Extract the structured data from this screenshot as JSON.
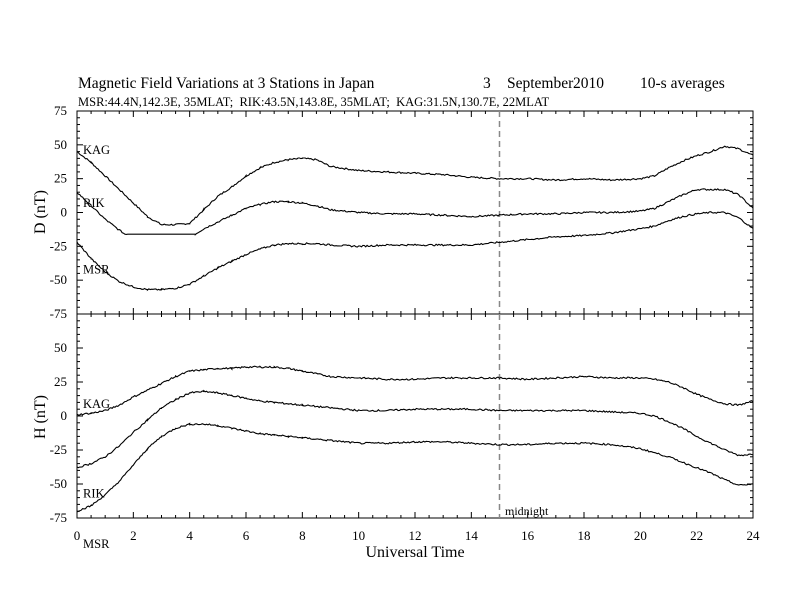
{
  "header": {
    "title": "Magnetic Field Variations at 3 Stations in Japan",
    "day": "3",
    "month": "September",
    "year": "2010",
    "averaging": "10-s averages",
    "stations_line": "MSR:44.4N,142.3E, 35MLAT;  RIK:43.5N,143.8E, 35MLAT;  KAG:31.5N,130.7E, 22MLAT"
  },
  "chart_data": [
    {
      "type": "line",
      "panel": "D",
      "ylabel": "D (nT)",
      "xlabel": "",
      "xlim": [
        0,
        24
      ],
      "ylim": [
        -75,
        75
      ],
      "yticks": [
        -75,
        -50,
        -25,
        0,
        25,
        50,
        75
      ],
      "series": [
        {
          "name": "KAG",
          "x": [
            0,
            0.5,
            1,
            1.5,
            2,
            2.5,
            3,
            3.5,
            4,
            4.5,
            5,
            5.5,
            6,
            6.5,
            7,
            7.5,
            8,
            8.5,
            9,
            10,
            11,
            12,
            13,
            14,
            15,
            16,
            17,
            18,
            19,
            20,
            20.5,
            21,
            21.5,
            22,
            22.5,
            23,
            23.5,
            24
          ],
          "y": [
            45,
            37,
            27,
            17,
            7,
            -3,
            -9,
            -9,
            -8,
            2,
            12,
            19,
            27,
            33,
            37,
            39,
            40,
            39,
            34,
            31,
            30,
            29,
            28,
            26,
            25,
            25,
            24,
            25,
            24,
            25,
            27,
            33,
            38,
            42,
            45,
            49,
            47,
            42
          ]
        },
        {
          "name": "RIK",
          "x": [
            0,
            0.5,
            1,
            1.5,
            1.7,
            2,
            3,
            4,
            4.2,
            4.5,
            5,
            5.5,
            6,
            6.5,
            7,
            7.5,
            8,
            8.5,
            9,
            10,
            11,
            12,
            13,
            14,
            15,
            16,
            17,
            18,
            19,
            20,
            20.5,
            21,
            21.5,
            22,
            22.5,
            23,
            23.5,
            24
          ],
          "y": [
            15,
            5,
            -5,
            -13,
            -16,
            -16,
            -16,
            -16,
            -16,
            -12,
            -7,
            -2,
            3,
            6,
            8,
            8,
            7,
            5,
            2,
            0,
            -1,
            -1,
            -2,
            -3,
            -2,
            -1,
            -1,
            0,
            0,
            1,
            3,
            8,
            13,
            17,
            17,
            17,
            13,
            3
          ]
        },
        {
          "name": "MSR",
          "x": [
            0,
            0.5,
            1,
            1.5,
            2,
            2.5,
            3,
            3.5,
            4,
            4.5,
            5,
            5.5,
            6,
            6.5,
            7,
            7.5,
            8,
            8.5,
            9,
            10,
            11,
            12,
            13,
            14,
            15,
            16,
            17,
            18,
            19,
            20,
            20.5,
            21,
            21.5,
            22,
            22.5,
            23,
            23.5,
            24
          ],
          "y": [
            -22,
            -34,
            -44,
            -51,
            -55,
            -57,
            -57,
            -56,
            -53,
            -47,
            -41,
            -36,
            -31,
            -27,
            -24,
            -23,
            -23,
            -23,
            -24,
            -25,
            -24,
            -24,
            -24,
            -24,
            -22,
            -20,
            -18,
            -17,
            -15,
            -12,
            -10,
            -6,
            -3,
            -1,
            0,
            0,
            -4,
            -12
          ]
        }
      ]
    },
    {
      "type": "line",
      "panel": "H",
      "ylabel": "H (nT)",
      "xlabel": "Universal Time",
      "xlim": [
        0,
        24
      ],
      "ylim": [
        -75,
        75
      ],
      "yticks": [
        -75,
        -50,
        -25,
        0,
        25,
        50
      ],
      "xticks": [
        0,
        2,
        4,
        6,
        8,
        10,
        12,
        14,
        16,
        18,
        20,
        22,
        24
      ],
      "series": [
        {
          "name": "KAG",
          "x": [
            0,
            0.5,
            1,
            1.5,
            2,
            2.5,
            3,
            3.5,
            4,
            4.5,
            5,
            5.5,
            6,
            6.5,
            7,
            7.5,
            8,
            8.5,
            9,
            10,
            11,
            12,
            13,
            14,
            15,
            16,
            17,
            18,
            19,
            20,
            20.5,
            21,
            21.5,
            22,
            22.5,
            23,
            23.5,
            24
          ],
          "y": [
            1,
            2,
            4,
            8,
            14,
            19,
            24,
            29,
            33,
            34,
            35,
            35,
            36,
            36,
            36,
            35,
            33,
            31,
            29,
            28,
            27,
            27,
            28,
            28,
            28,
            27,
            28,
            29,
            28,
            28,
            27,
            25,
            21,
            16,
            12,
            9,
            8,
            11
          ]
        },
        {
          "name": "RIK",
          "x": [
            0,
            0.5,
            1,
            1.5,
            2,
            2.5,
            3,
            3.5,
            4,
            4.5,
            5,
            5.5,
            6,
            6.5,
            7,
            7.5,
            8,
            8.5,
            9,
            10,
            11,
            12,
            13,
            14,
            15,
            16,
            17,
            18,
            19,
            20,
            20.5,
            21,
            21.5,
            22,
            22.5,
            23,
            23.5,
            24
          ],
          "y": [
            -38,
            -35,
            -30,
            -22,
            -12,
            -3,
            6,
            12,
            17,
            18,
            17,
            15,
            13,
            11,
            10,
            9,
            8,
            7,
            6,
            4,
            4,
            5,
            5,
            5,
            4,
            4,
            4,
            4,
            3,
            2,
            0,
            -4,
            -9,
            -15,
            -20,
            -25,
            -29,
            -28
          ]
        },
        {
          "name": "MSR",
          "x": [
            0,
            0.5,
            1,
            1.5,
            2,
            2.5,
            3,
            3.5,
            4,
            4.5,
            5,
            5.5,
            6,
            6.5,
            7,
            7.5,
            8,
            8.5,
            9,
            10,
            11,
            12,
            13,
            14,
            15,
            16,
            17,
            18,
            19,
            20,
            20.5,
            21,
            21.5,
            22,
            22.5,
            23,
            23.5,
            24
          ],
          "y": [
            -70,
            -66,
            -58,
            -48,
            -36,
            -24,
            -15,
            -9,
            -6,
            -6,
            -7,
            -9,
            -11,
            -13,
            -14,
            -15,
            -16,
            -17,
            -18,
            -20,
            -20,
            -19,
            -19,
            -20,
            -21,
            -21,
            -20,
            -20,
            -21,
            -24,
            -27,
            -30,
            -34,
            -38,
            -42,
            -47,
            -51,
            -50
          ]
        }
      ]
    }
  ],
  "annotations": {
    "midnight_label": "midnight",
    "midnight_ut": 15
  },
  "colors": {
    "line": "#000000",
    "midnight_line": "#888888"
  }
}
